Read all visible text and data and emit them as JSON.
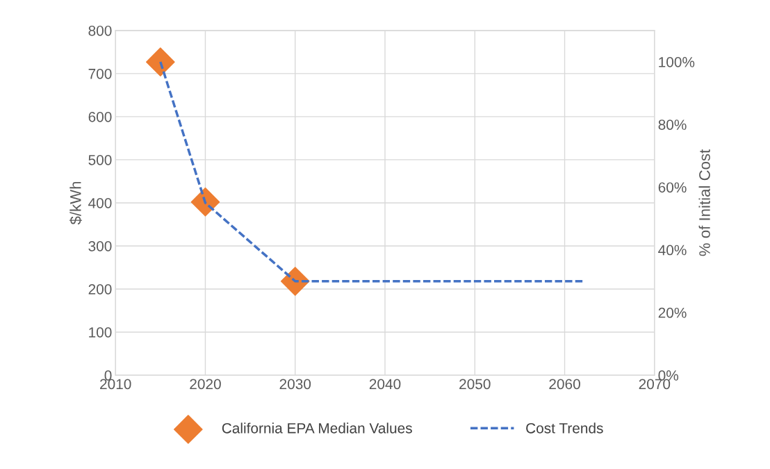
{
  "chart_data": {
    "type": "scatter",
    "ylabel": "$/kWh",
    "y2label": "% of Initial Cost",
    "xlim": [
      2010,
      2070
    ],
    "xticks": [
      2010,
      2020,
      2030,
      2040,
      2050,
      2060,
      2070
    ],
    "ylim": [
      0,
      800
    ],
    "yticks": [
      0,
      100,
      200,
      300,
      400,
      500,
      600,
      700,
      800
    ],
    "y2lim": [
      0,
      110
    ],
    "y2ticks": [
      {
        "value": 0,
        "label": "0%"
      },
      {
        "value": 20,
        "label": "20%"
      },
      {
        "value": 40,
        "label": "40%"
      },
      {
        "value": 60,
        "label": "60%"
      },
      {
        "value": 80,
        "label": "80%"
      },
      {
        "value": 100,
        "label": "100%"
      }
    ],
    "grid": true,
    "legend": "bottom",
    "series": [
      {
        "name": "California EPA Median Values",
        "color": "#ed7d31",
        "marker": "diamond",
        "x": [
          2015,
          2020,
          2030
        ],
        "values": [
          727,
          402,
          218
        ]
      },
      {
        "name": "Cost Trends",
        "type": "line",
        "axis": "y2",
        "color": "#4472c4",
        "line_style": "dashed",
        "marker": "none",
        "x": [
          2015,
          2020,
          2030,
          2062
        ],
        "values": [
          100,
          55,
          30,
          30
        ]
      }
    ]
  }
}
